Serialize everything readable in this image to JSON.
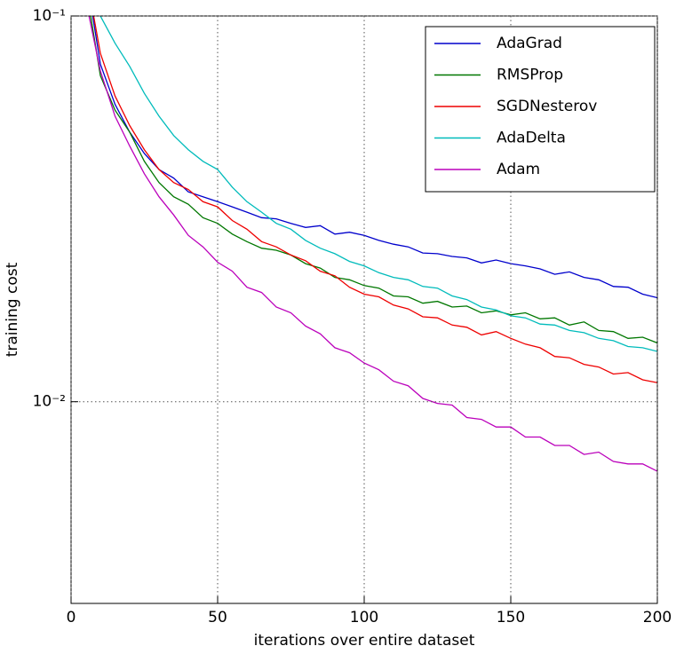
{
  "chart_data": {
    "type": "line",
    "xlabel": "iterations over entire dataset",
    "ylabel": "training cost",
    "x": [
      5,
      10,
      15,
      20,
      25,
      30,
      35,
      40,
      45,
      50,
      55,
      60,
      65,
      70,
      75,
      80,
      85,
      90,
      95,
      100,
      105,
      110,
      115,
      120,
      125,
      130,
      135,
      140,
      145,
      150,
      155,
      160,
      165,
      170,
      175,
      180,
      185,
      190,
      195,
      200
    ],
    "series": [
      {
        "name": "AdaGrad",
        "color": "#0000cc",
        "values": [
          0.13,
          0.075,
          0.059,
          0.05,
          0.044,
          0.04,
          0.038,
          0.035,
          0.034,
          0.033,
          0.032,
          0.031,
          0.03,
          0.0298,
          0.029,
          0.0283,
          0.0286,
          0.0272,
          0.0275,
          0.027,
          0.0262,
          0.0256,
          0.0252,
          0.0243,
          0.0242,
          0.0238,
          0.0236,
          0.0229,
          0.0233,
          0.0228,
          0.0225,
          0.0221,
          0.0214,
          0.0217,
          0.021,
          0.0207,
          0.0199,
          0.0198,
          0.019,
          0.0186
        ]
      },
      {
        "name": "RMSProp",
        "color": "#007700",
        "values": [
          0.12,
          0.07,
          0.057,
          0.05,
          0.042,
          0.037,
          0.034,
          0.0325,
          0.03,
          0.029,
          0.0272,
          0.026,
          0.025,
          0.0247,
          0.024,
          0.0228,
          0.0222,
          0.021,
          0.0207,
          0.02,
          0.0197,
          0.0188,
          0.0187,
          0.018,
          0.0182,
          0.0176,
          0.0177,
          0.017,
          0.0172,
          0.0168,
          0.017,
          0.0164,
          0.0165,
          0.0158,
          0.0161,
          0.0153,
          0.0152,
          0.0146,
          0.0147,
          0.0142
        ]
      },
      {
        "name": "SGDNesterov",
        "color": "#ee0000",
        "values": [
          0.13,
          0.08,
          0.062,
          0.052,
          0.045,
          0.04,
          0.037,
          0.0355,
          0.033,
          0.032,
          0.0295,
          0.028,
          0.026,
          0.0252,
          0.024,
          0.0232,
          0.0218,
          0.0212,
          0.0198,
          0.019,
          0.0187,
          0.0178,
          0.0174,
          0.0166,
          0.0165,
          0.0158,
          0.0156,
          0.0149,
          0.0152,
          0.0146,
          0.0141,
          0.0138,
          0.0131,
          0.013,
          0.0125,
          0.0123,
          0.0118,
          0.0119,
          0.0114,
          0.0112
        ]
      },
      {
        "name": "AdaDelta",
        "color": "#00bbbb",
        "values": [
          0.15,
          0.1,
          0.085,
          0.074,
          0.063,
          0.055,
          0.049,
          0.045,
          0.042,
          0.04,
          0.036,
          0.033,
          0.031,
          0.029,
          0.028,
          0.0262,
          0.025,
          0.0242,
          0.0231,
          0.0225,
          0.0216,
          0.021,
          0.0207,
          0.0199,
          0.0197,
          0.0188,
          0.0184,
          0.0176,
          0.0173,
          0.0167,
          0.0165,
          0.0159,
          0.0158,
          0.0153,
          0.0151,
          0.0146,
          0.0144,
          0.0139,
          0.0138,
          0.0135
        ]
      },
      {
        "name": "Adam",
        "color": "#bb00bb",
        "values": [
          0.11,
          0.072,
          0.055,
          0.046,
          0.039,
          0.034,
          0.0305,
          0.027,
          0.0252,
          0.023,
          0.0218,
          0.0198,
          0.0192,
          0.0176,
          0.017,
          0.0157,
          0.015,
          0.0138,
          0.0134,
          0.0126,
          0.0121,
          0.0113,
          0.011,
          0.0102,
          0.0099,
          0.0098,
          0.0091,
          0.009,
          0.0086,
          0.0086,
          0.0081,
          0.0081,
          0.0077,
          0.0077,
          0.0073,
          0.0074,
          0.007,
          0.0069,
          0.0069,
          0.0066
        ]
      }
    ],
    "xlim": [
      0,
      200
    ],
    "xticks": [
      0,
      50,
      100,
      150,
      200
    ],
    "ylim": [
      0.003,
      0.1
    ],
    "log_y": true,
    "yticks": [
      {
        "value": 0.01,
        "label": "10⁻²"
      },
      {
        "value": 0.1,
        "label": "10⁻¹"
      }
    ],
    "grid": true,
    "legend": "upper right"
  }
}
